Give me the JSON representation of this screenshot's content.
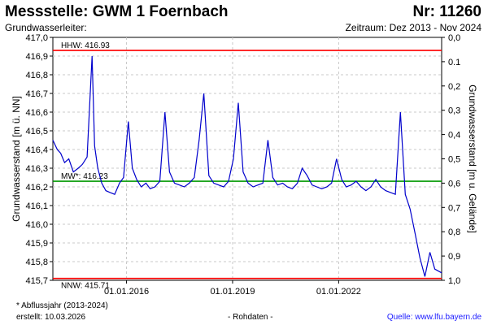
{
  "header": {
    "title": "Messstelle: GWM 1 Foernbach",
    "number": "Nr: 11260",
    "subtitle_left": "Grundwasserleiter:",
    "subtitle_right": "Zeitraum: Dez 2013 - Nov 2024"
  },
  "footer": {
    "note": "* Abflussjahr (2013-2024)",
    "created": "erstellt:  10.03.2026",
    "raw": "- Rohdaten -",
    "source": "Quelle:  www.lfu.bayern.de"
  },
  "colors": {
    "series": "#0000cc",
    "extreme_lines": "#ff0000",
    "mean_line": "#009900",
    "grid": "#c8c8c8"
  },
  "chart_data": {
    "type": "line",
    "ylabel_left": "Grundwasserstand [m ü. NN]",
    "ylabel_right": "Grundwasserstand [m u. Gelände]",
    "ylim": [
      415.7,
      417.0
    ],
    "yticks": [
      "415,7",
      "415,8",
      "415,9",
      "416,0",
      "416,1",
      "416,2",
      "416,3",
      "416,4",
      "416,5",
      "416,6",
      "416,7",
      "416,8",
      "416,9",
      "417,0"
    ],
    "ylim_right": [
      0.0,
      1.0
    ],
    "yticks_right": [
      "0,0",
      "0.1",
      "0,2",
      "0,3",
      "0,4",
      "0,5",
      "0,6",
      "0,7",
      "0,8",
      "0,9",
      "1,0"
    ],
    "x_start": "2013-12-01",
    "x_end": "2024-11-30",
    "xticks": [
      {
        "date": "2016-01-01",
        "label": "01.01.2016"
      },
      {
        "date": "2019-01-01",
        "label": "01.01.2019"
      },
      {
        "date": "2022-01-01",
        "label": "01.01.2022"
      }
    ],
    "grid": true,
    "reference_lines": [
      {
        "label": "HHW: 416.93",
        "value": 416.93,
        "color": "#ff0000"
      },
      {
        "label": "MW*: 416.23",
        "value": 416.23,
        "color": "#009900"
      },
      {
        "label": "NNW: 415.71",
        "value": 415.71,
        "color": "#ff0000"
      }
    ],
    "series": [
      {
        "x": [
          "2013-12-01",
          "2014-01-15",
          "2014-02-20",
          "2014-04-01",
          "2014-05-15",
          "2014-07-01",
          "2014-08-20",
          "2014-10-01",
          "2014-11-20",
          "2015-01-10",
          "2015-02-05",
          "2015-03-10",
          "2015-04-20",
          "2015-06-01",
          "2015-07-15",
          "2015-09-01",
          "2015-10-20",
          "2015-12-01",
          "2016-01-20",
          "2016-03-01",
          "2016-04-15",
          "2016-06-01",
          "2016-07-20",
          "2016-09-01",
          "2016-10-20",
          "2016-12-10",
          "2017-02-01",
          "2017-03-20",
          "2017-05-10",
          "2017-07-01",
          "2017-08-20",
          "2017-10-10",
          "2017-12-01",
          "2018-01-20",
          "2018-03-10",
          "2018-05-01",
          "2018-06-20",
          "2018-08-10",
          "2018-10-01",
          "2018-11-20",
          "2019-01-10",
          "2019-03-01",
          "2019-04-20",
          "2019-06-10",
          "2019-08-01",
          "2019-09-20",
          "2019-11-10",
          "2020-01-01",
          "2020-02-20",
          "2020-04-10",
          "2020-06-01",
          "2020-07-20",
          "2020-09-10",
          "2020-11-01",
          "2020-12-20",
          "2021-02-10",
          "2021-04-01",
          "2021-05-20",
          "2021-07-10",
          "2021-09-01",
          "2021-10-20",
          "2021-12-10",
          "2022-02-01",
          "2022-03-20",
          "2022-05-10",
          "2022-07-01",
          "2022-08-20",
          "2022-10-10",
          "2022-12-01",
          "2023-01-20",
          "2023-03-10",
          "2023-05-01",
          "2023-06-20",
          "2023-08-10",
          "2023-10-01",
          "2023-11-20",
          "2024-01-10",
          "2024-03-01",
          "2024-04-20",
          "2024-06-10",
          "2024-08-01",
          "2024-09-20",
          "2024-11-30"
        ],
        "y": [
          416.45,
          416.4,
          416.38,
          416.33,
          416.35,
          416.28,
          416.3,
          416.32,
          416.36,
          416.9,
          416.42,
          416.3,
          416.22,
          416.18,
          416.17,
          416.16,
          416.22,
          416.25,
          416.55,
          416.3,
          416.24,
          416.2,
          416.22,
          416.19,
          416.2,
          416.23,
          416.6,
          416.28,
          416.22,
          416.21,
          416.2,
          416.22,
          416.25,
          416.45,
          416.7,
          416.26,
          416.22,
          416.21,
          416.2,
          416.23,
          416.35,
          416.65,
          416.28,
          416.22,
          416.2,
          416.21,
          416.22,
          416.45,
          416.25,
          416.21,
          416.22,
          416.2,
          416.19,
          416.22,
          416.3,
          416.26,
          416.21,
          416.2,
          416.19,
          416.2,
          416.22,
          416.35,
          416.24,
          416.2,
          416.21,
          416.23,
          416.2,
          416.18,
          416.2,
          416.24,
          416.2,
          416.18,
          416.17,
          416.16,
          416.6,
          416.16,
          416.08,
          415.95,
          415.82,
          415.72,
          415.85,
          415.76,
          415.74
        ]
      }
    ]
  }
}
